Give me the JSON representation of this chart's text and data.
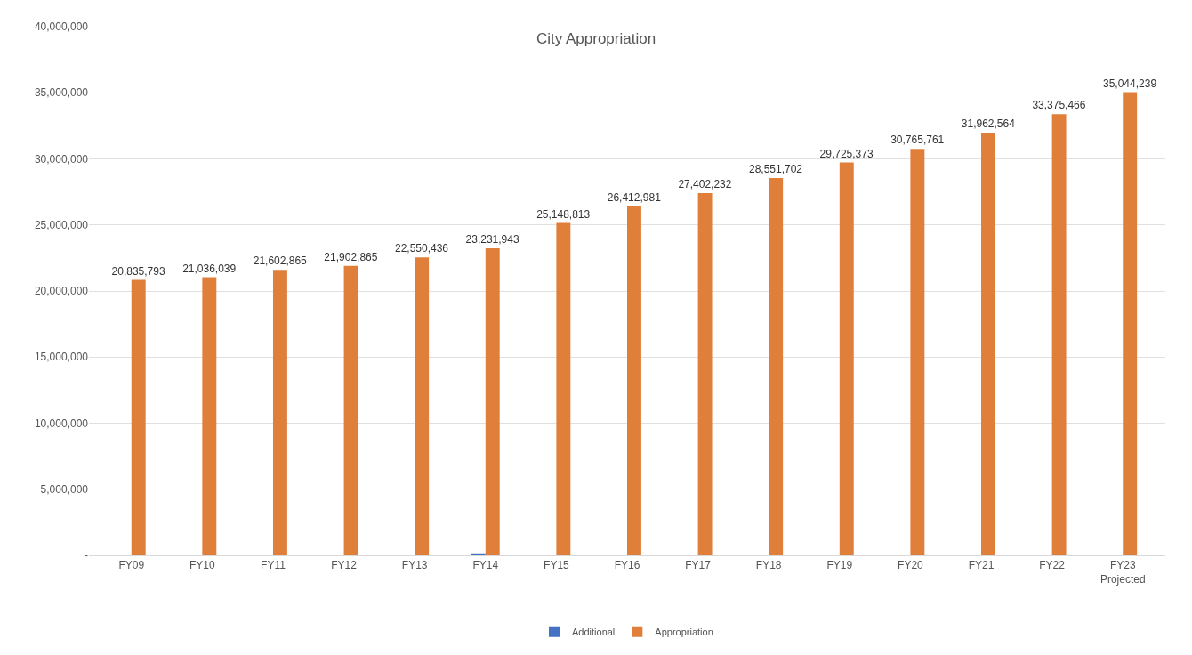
{
  "chart_data": {
    "type": "bar",
    "title": "City Appropriation",
    "categories": [
      "FY09",
      "FY10",
      "FY11",
      "FY12",
      "FY13",
      "FY14",
      "FY15",
      "FY16",
      "FY17",
      "FY18",
      "FY19",
      "FY20",
      "FY21",
      "FY22",
      "FY23\nProjected"
    ],
    "series": [
      {
        "name": "Additional",
        "color": "#4472c4",
        "values": [
          null,
          null,
          null,
          null,
          null,
          150000,
          null,
          null,
          null,
          null,
          null,
          null,
          null,
          null,
          null
        ]
      },
      {
        "name": "Appropriation",
        "color": "#e07f3a",
        "values": [
          20835793,
          21036039,
          21602865,
          21902865,
          22550436,
          23231943,
          25148813,
          26412981,
          27402232,
          28551702,
          29725373,
          30765761,
          31962564,
          33375466,
          35044239
        ],
        "value_labels": [
          "20,835,793",
          "21,036,039",
          "21,602,865",
          "21,902,865",
          "22,550,436",
          "23,231,943",
          "25,148,813",
          "26,412,981",
          "27,402,232",
          "28,551,702",
          "29,725,373",
          "30,765,761",
          "31,962,564",
          "33,375,466",
          "35,044,239"
        ]
      }
    ],
    "ylim": [
      0,
      40000000
    ],
    "yticks": [
      {
        "value": 0,
        "label": "-"
      },
      {
        "value": 5000000,
        "label": "5,000,000"
      },
      {
        "value": 10000000,
        "label": "10,000,000"
      },
      {
        "value": 15000000,
        "label": "15,000,000"
      },
      {
        "value": 20000000,
        "label": "20,000,000"
      },
      {
        "value": 25000000,
        "label": "25,000,000"
      },
      {
        "value": 30000000,
        "label": "30,000,000"
      },
      {
        "value": 35000000,
        "label": "35,000,000"
      },
      {
        "value": 40000000,
        "label": "40,000,000"
      }
    ],
    "grid": "y",
    "legend": "bottom"
  }
}
